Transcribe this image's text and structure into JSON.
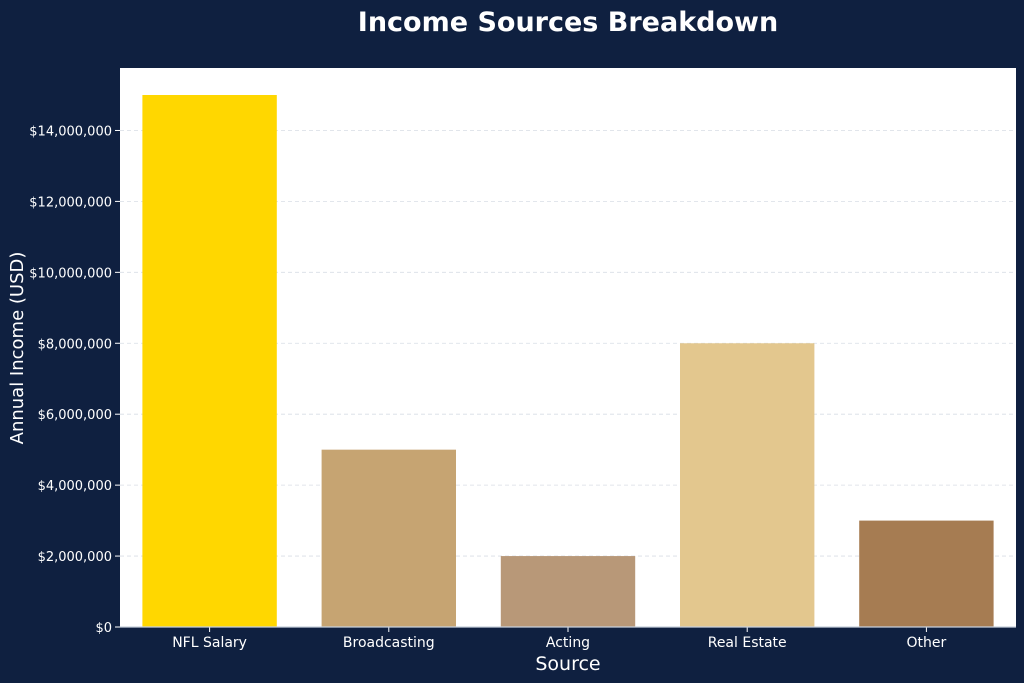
{
  "chart_data": {
    "type": "bar",
    "title": "Income Sources Breakdown",
    "xlabel": "Source",
    "ylabel": "Annual Income (USD)",
    "categories": [
      "NFL Salary",
      "Broadcasting",
      "Acting",
      "Real Estate",
      "Other"
    ],
    "values": [
      15000000,
      5000000,
      2000000,
      8000000,
      3000000
    ],
    "bar_colors": [
      "#FFD700",
      "#C6A472",
      "#B89878",
      "#E3C78E",
      "#A67C52"
    ],
    "ylim": [
      0,
      15800000
    ],
    "yticks": [
      0,
      2000000,
      4000000,
      6000000,
      8000000,
      10000000,
      12000000,
      14000000
    ],
    "ytick_labels": [
      "$0",
      "$2,000,000",
      "$4,000,000",
      "$6,000,000",
      "$8,000,000",
      "$10,000,000",
      "$12,000,000",
      "$14,000,000"
    ],
    "grid": true,
    "colors": {
      "background": "#0f2040",
      "plot_background": "#ffffff",
      "text": "#ffffff"
    }
  }
}
